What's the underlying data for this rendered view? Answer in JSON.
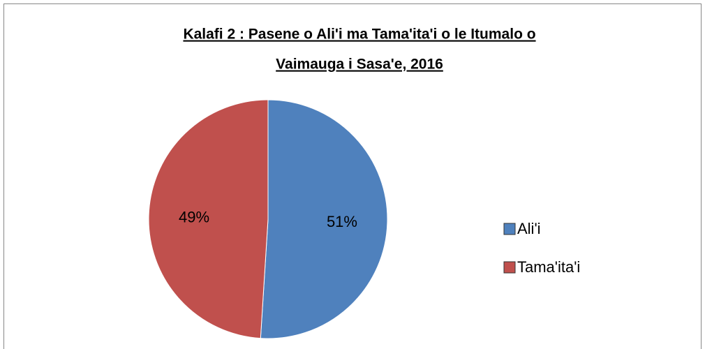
{
  "chart_data": {
    "type": "pie",
    "title": [
      "Kalafi 2 : Pasene o Ali'i ma Tama'ita'i o le Itumalo o",
      "Vaimauga i Sasa'e, 2016"
    ],
    "categories": [
      "Ali'i",
      "Tama'ita'i"
    ],
    "values": [
      51,
      49
    ],
    "value_labels": [
      "51%",
      "49%"
    ],
    "colors": [
      "#4f81bd",
      "#c0504d"
    ],
    "legend": "right"
  }
}
